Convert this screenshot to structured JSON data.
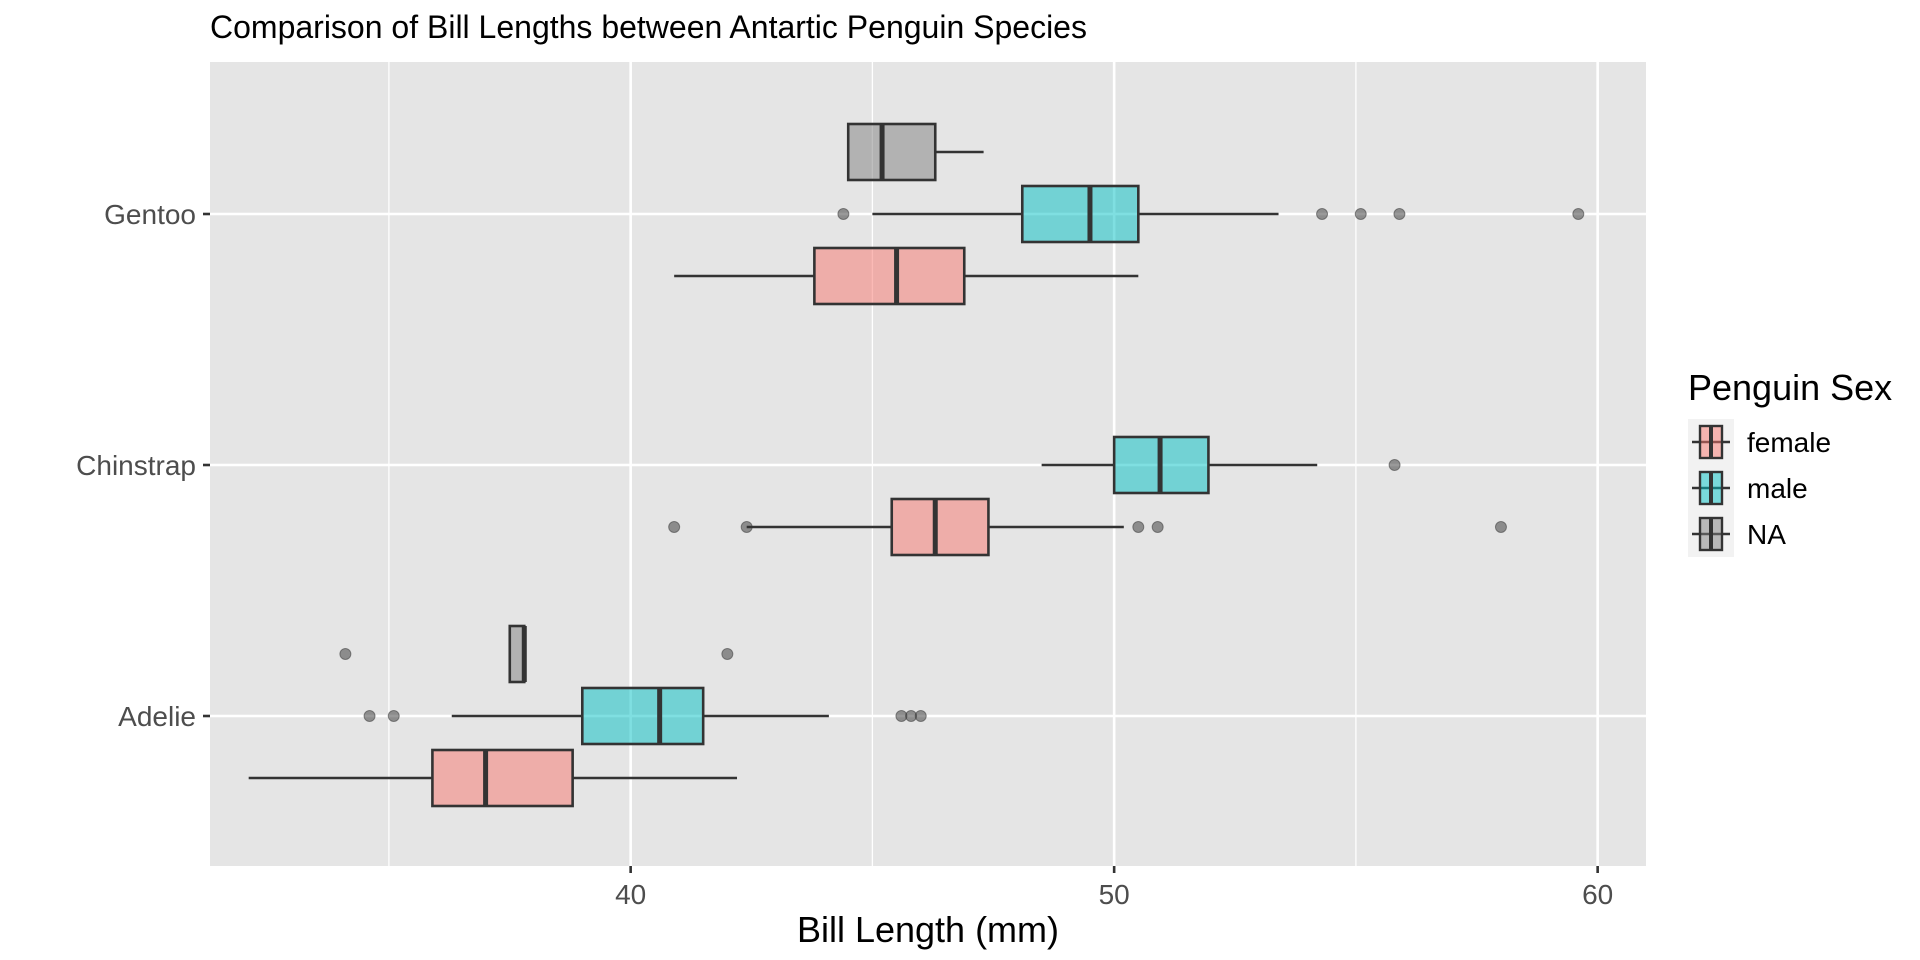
{
  "chart_data": {
    "type": "boxplot",
    "orientation": "horizontal",
    "title": "Comparison of Bill Lengths between Antartic Penguin Species",
    "xlabel": "Bill Length (mm)",
    "ylabel": "",
    "xlim": [
      31.3,
      61.0
    ],
    "x_ticks": [
      40,
      50,
      60
    ],
    "x_tick_labels": [
      "40",
      "50",
      "60"
    ],
    "categories": [
      "Adelie",
      "Chinstrap",
      "Gentoo"
    ],
    "grid": true,
    "legend": {
      "title": "Penguin Sex",
      "placement": "right",
      "entries": [
        "female",
        "male",
        "NA"
      ]
    },
    "colors": {
      "female": "#F8766D",
      "male": "#00BFC4",
      "NA": "#808080",
      "panel_background": "#E5E5E5"
    },
    "series": [
      {
        "name": "female",
        "boxes": [
          {
            "category": "Adelie",
            "whisker_low": 32.1,
            "q1": 35.9,
            "median": 37.0,
            "q3": 38.8,
            "whisker_high": 42.2,
            "outliers": []
          },
          {
            "category": "Chinstrap",
            "whisker_low": 42.4,
            "q1": 45.4,
            "median": 46.3,
            "q3": 47.4,
            "whisker_high": 50.2,
            "outliers": [
              40.9,
              42.4,
              50.5,
              50.9,
              58.0
            ]
          },
          {
            "category": "Gentoo",
            "whisker_low": 40.9,
            "q1": 43.8,
            "median": 45.5,
            "q3": 46.9,
            "whisker_high": 50.5,
            "outliers": []
          }
        ]
      },
      {
        "name": "male",
        "boxes": [
          {
            "category": "Adelie",
            "whisker_low": 36.3,
            "q1": 39.0,
            "median": 40.6,
            "q3": 41.5,
            "whisker_high": 44.1,
            "outliers": [
              34.6,
              35.1,
              45.6,
              45.8,
              46.0
            ]
          },
          {
            "category": "Chinstrap",
            "whisker_low": 48.5,
            "q1": 50.0,
            "median": 50.95,
            "q3": 51.95,
            "whisker_high": 54.2,
            "outliers": [
              55.8
            ]
          },
          {
            "category": "Gentoo",
            "whisker_low": 45.0,
            "q1": 48.1,
            "median": 49.5,
            "q3": 50.5,
            "whisker_high": 53.4,
            "outliers": [
              44.4,
              54.3,
              55.1,
              55.9,
              59.6
            ]
          }
        ]
      },
      {
        "name": "NA",
        "boxes": [
          {
            "category": "Adelie",
            "whisker_low": 37.5,
            "q1": 37.5,
            "median": 37.8,
            "q3": 37.8,
            "whisker_high": 37.8,
            "outliers": [
              34.1,
              42.0
            ]
          },
          {
            "category": "Gentoo",
            "whisker_low": 44.5,
            "q1": 44.5,
            "median": 45.2,
            "q3": 46.3,
            "whisker_high": 47.3,
            "outliers": []
          }
        ]
      }
    ]
  }
}
